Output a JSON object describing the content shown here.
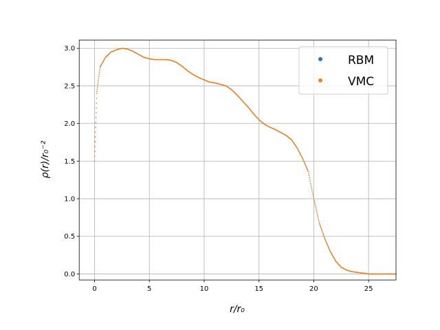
{
  "chart_data": {
    "type": "scatter",
    "title": "",
    "xlabel": "r/r₀",
    "ylabel": "ρ(r)/r₀⁻²",
    "xlim": [
      -1.4,
      27.5
    ],
    "ylim": [
      -0.08,
      3.11
    ],
    "xticks": [
      0,
      5,
      10,
      15,
      20,
      25
    ],
    "yticks": [
      0.0,
      0.5,
      1.0,
      1.5,
      2.0,
      2.5,
      3.0
    ],
    "xtick_labels": [
      "0",
      "5",
      "10",
      "15",
      "20",
      "25"
    ],
    "ytick_labels": [
      "0.0",
      "0.5",
      "1.0",
      "1.5",
      "2.0",
      "2.5",
      "3.0"
    ],
    "grid": true,
    "legend": {
      "placement": "top-right"
    },
    "series": [
      {
        "name": "RBM",
        "color": "#1f77b4",
        "x": [
          0.0,
          0.2,
          0.5,
          1.0,
          1.5,
          2.0,
          2.5,
          3.0,
          3.5,
          4.0,
          4.5,
          5.0,
          5.5,
          6.0,
          6.5,
          7.0,
          7.5,
          8.0,
          8.5,
          9.0,
          9.5,
          10.0,
          10.5,
          11.0,
          11.5,
          12.0,
          12.5,
          13.0,
          13.5,
          14.0,
          14.5,
          15.0,
          15.5,
          16.0,
          16.5,
          17.0,
          17.5,
          18.0,
          18.5,
          19.0,
          19.5,
          20.0,
          20.5,
          21.0,
          21.5,
          22.0,
          22.5,
          23.0,
          23.5,
          24.0,
          24.5,
          25.0,
          25.5,
          26.0,
          26.5,
          27.0,
          27.5
        ],
        "y": [
          1.5,
          2.4,
          2.75,
          2.88,
          2.95,
          2.98,
          3.0,
          2.99,
          2.96,
          2.92,
          2.88,
          2.86,
          2.85,
          2.85,
          2.85,
          2.84,
          2.81,
          2.76,
          2.7,
          2.65,
          2.61,
          2.58,
          2.55,
          2.54,
          2.52,
          2.5,
          2.45,
          2.38,
          2.3,
          2.22,
          2.13,
          2.05,
          1.99,
          1.95,
          1.92,
          1.88,
          1.84,
          1.78,
          1.67,
          1.53,
          1.36,
          1.0,
          0.68,
          0.47,
          0.3,
          0.17,
          0.09,
          0.05,
          0.03,
          0.02,
          0.01,
          0.0,
          0.0,
          0.0,
          0.0,
          0.0,
          0.0
        ]
      },
      {
        "name": "VMC",
        "color": "#ff7f0e",
        "x": [
          0.0,
          0.2,
          0.5,
          1.0,
          1.5,
          2.0,
          2.5,
          3.0,
          3.5,
          4.0,
          4.5,
          5.0,
          5.5,
          6.0,
          6.5,
          7.0,
          7.5,
          8.0,
          8.5,
          9.0,
          9.5,
          10.0,
          10.5,
          11.0,
          11.5,
          12.0,
          12.5,
          13.0,
          13.5,
          14.0,
          14.5,
          15.0,
          15.5,
          16.0,
          16.5,
          17.0,
          17.5,
          18.0,
          18.5,
          19.0,
          19.5,
          20.0,
          20.5,
          21.0,
          21.5,
          22.0,
          22.5,
          23.0,
          23.5,
          24.0,
          24.5,
          25.0,
          25.5,
          26.0,
          26.5,
          27.0,
          27.5
        ],
        "y": [
          1.5,
          2.4,
          2.75,
          2.88,
          2.95,
          2.98,
          3.0,
          2.99,
          2.96,
          2.92,
          2.88,
          2.86,
          2.85,
          2.85,
          2.85,
          2.84,
          2.81,
          2.76,
          2.7,
          2.65,
          2.61,
          2.58,
          2.55,
          2.54,
          2.52,
          2.5,
          2.45,
          2.38,
          2.3,
          2.22,
          2.13,
          2.05,
          1.99,
          1.95,
          1.92,
          1.88,
          1.84,
          1.78,
          1.67,
          1.53,
          1.36,
          1.0,
          0.68,
          0.47,
          0.3,
          0.17,
          0.09,
          0.05,
          0.03,
          0.02,
          0.01,
          0.0,
          0.0,
          0.0,
          0.0,
          0.0,
          0.0
        ]
      }
    ]
  }
}
